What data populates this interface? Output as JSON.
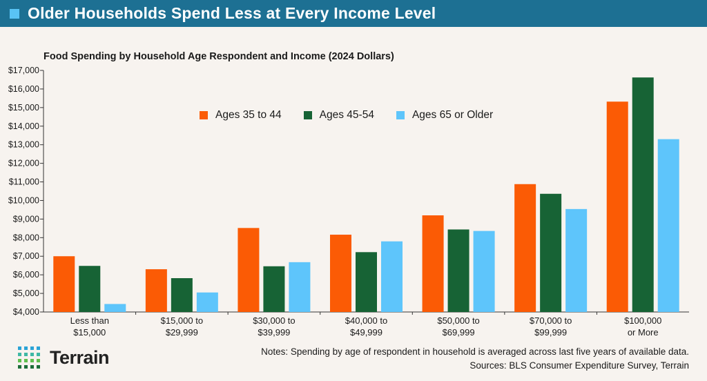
{
  "header": {
    "title": "Older Households Spend Less at Every Income Level"
  },
  "colors": {
    "header_bg": "#1d7093",
    "accent_square": "#59c3f4",
    "series": [
      "#fb5b05",
      "#176335",
      "#5ec5fb"
    ]
  },
  "chart_data": {
    "type": "bar",
    "title": "Food Spending by Household Age Respondent and Income (2024 Dollars)",
    "categories": [
      [
        "Less than",
        "$15,000"
      ],
      [
        "$15,000 to",
        "$29,999"
      ],
      [
        "$30,000 to",
        "$39,999"
      ],
      [
        "$40,000 to",
        "$49,999"
      ],
      [
        "$50,000 to",
        "$69,999"
      ],
      [
        "$70,000 to",
        "$99,999"
      ],
      [
        "$100,000",
        "or More"
      ]
    ],
    "series": [
      {
        "name": "Ages 35 to 44",
        "values": [
          7000,
          6300,
          8520,
          8160,
          9200,
          10880,
          15320
        ]
      },
      {
        "name": "Ages 45-54",
        "values": [
          6480,
          5820,
          6460,
          7220,
          8440,
          10360,
          16620
        ]
      },
      {
        "name": "Ages 65 or Older",
        "values": [
          4430,
          5050,
          6680,
          7800,
          8360,
          9540,
          13300
        ]
      }
    ],
    "ylim": [
      4000,
      17000
    ],
    "yticks": [
      "$4,000",
      "$5,000",
      "$6,000",
      "$7,000",
      "$8,000",
      "$9,000",
      "$10,000",
      "$11,000",
      "$12,000",
      "$13,000",
      "$14,000",
      "$15,000",
      "$16,000",
      "$17,000"
    ],
    "xlabel": "",
    "ylabel": "",
    "grid": false,
    "legend_position": "top-center"
  },
  "footer": {
    "logo_text": "Terrain",
    "notes": "Notes: Spending by age of respondent in household is averaged across last five years of available data.",
    "sources": "Sources: BLS Consumer Expenditure Survey, Terrain"
  }
}
